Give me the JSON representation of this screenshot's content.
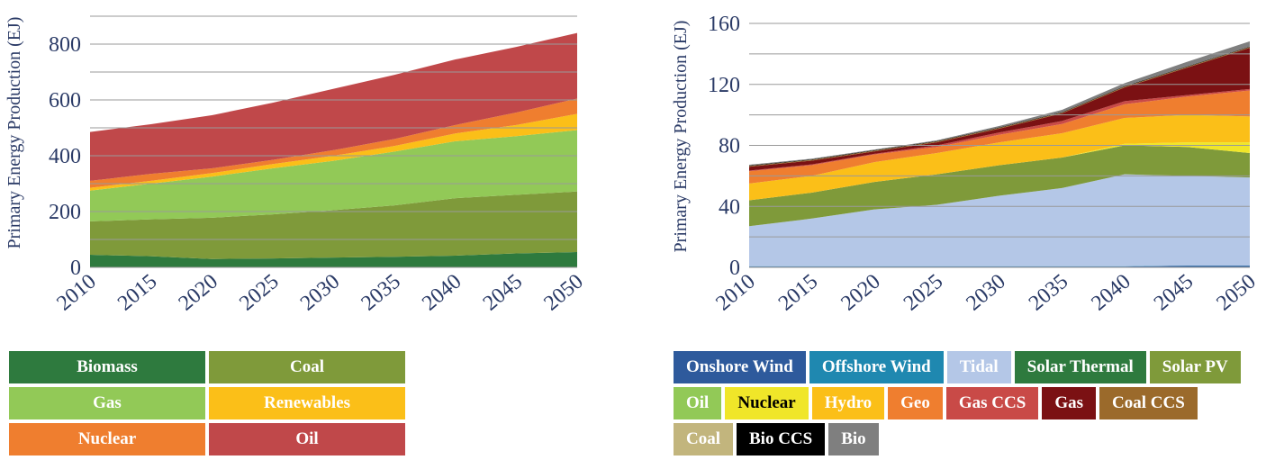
{
  "chart_data": [
    {
      "type": "stacked-area",
      "ylabel": "Primary Energy Production (EJ)",
      "x": [
        2010,
        2015,
        2020,
        2025,
        2030,
        2035,
        2040,
        2045,
        2050
      ],
      "xlim": [
        2010,
        2050
      ],
      "xticks": [
        2010,
        2015,
        2020,
        2025,
        2030,
        2035,
        2040,
        2045,
        2050
      ],
      "ylim": [
        0,
        900
      ],
      "yticks": [
        0,
        200,
        400,
        600,
        800
      ],
      "ygrid": [
        100,
        200,
        300,
        400,
        500,
        600,
        700,
        800,
        900
      ],
      "series": [
        {
          "name": "Biomass",
          "color": "#2e7a3e",
          "values": [
            45,
            40,
            30,
            32,
            35,
            38,
            42,
            50,
            55
          ]
        },
        {
          "name": "Coal",
          "color": "#7f9a3a",
          "values": [
            120,
            132,
            148,
            158,
            170,
            184,
            206,
            210,
            217
          ]
        },
        {
          "name": "Gas",
          "color": "#92c957",
          "values": [
            110,
            128,
            147,
            165,
            177,
            193,
            204,
            210,
            220
          ]
        },
        {
          "name": "Renewables",
          "color": "#fbbf18",
          "values": [
            10,
            10,
            13,
            15,
            18,
            20,
            28,
            40,
            58
          ]
        },
        {
          "name": "Nuclear",
          "color": "#ef7e2f",
          "values": [
            25,
            25,
            17,
            15,
            20,
            25,
            30,
            45,
            55
          ]
        },
        {
          "name": "Oil",
          "color": "#c0484a",
          "values": [
            175,
            178,
            190,
            205,
            220,
            230,
            235,
            235,
            235
          ]
        }
      ]
    },
    {
      "type": "stacked-area",
      "ylabel": "Primary Energy Production (EJ)",
      "x": [
        2010,
        2015,
        2020,
        2025,
        2030,
        2035,
        2040,
        2045,
        2050
      ],
      "xlim": [
        2010,
        2050
      ],
      "xticks": [
        2010,
        2015,
        2020,
        2025,
        2030,
        2035,
        2040,
        2045,
        2050
      ],
      "ylim": [
        0,
        160
      ],
      "yticks": [
        0,
        40,
        80,
        120,
        160
      ],
      "ygrid": [
        20,
        40,
        60,
        80,
        100,
        120,
        140,
        160
      ],
      "series": [
        {
          "name": "Onshore Wind",
          "color": "#2e5a9c",
          "values": [
            0.5,
            0.5,
            0.5,
            0.5,
            0.5,
            0.5,
            0.5,
            1,
            1
          ]
        },
        {
          "name": "Offshore Wind",
          "color": "#1f88b0",
          "values": [
            0.2,
            0.2,
            0.2,
            0.2,
            0.2,
            0.2,
            0.2,
            0.2,
            0.2
          ]
        },
        {
          "name": "Tidal",
          "color": "#b4c7e7",
          "values": [
            26.3,
            31.3,
            37.3,
            40.3,
            46.3,
            51.3,
            60.3,
            58.8,
            57.8
          ]
        },
        {
          "name": "Solar Thermal",
          "color": "#2e7a3e",
          "values": [
            0,
            0,
            0,
            0,
            0,
            0,
            0,
            0,
            0
          ]
        },
        {
          "name": "Solar PV",
          "color": "#7f9a3a",
          "values": [
            17,
            17,
            18,
            20,
            20,
            20,
            19,
            19,
            16
          ]
        },
        {
          "name": "Oil",
          "color": "#92c957",
          "values": [
            0,
            0,
            0,
            0,
            0,
            0,
            0,
            0,
            0
          ]
        },
        {
          "name": "Nuclear",
          "color": "#f0e629",
          "values": [
            0,
            0,
            0,
            0,
            0,
            0,
            1,
            3,
            7
          ]
        },
        {
          "name": "Hydro",
          "color": "#fbbf18",
          "values": [
            11,
            11,
            13,
            14,
            15,
            16,
            17,
            18,
            17
          ]
        },
        {
          "name": "Geo",
          "color": "#ef7e2f",
          "values": [
            8,
            7,
            5,
            4,
            5,
            6,
            9,
            12,
            17
          ]
        },
        {
          "name": "Gas CCS",
          "color": "#c94a47",
          "values": [
            0.5,
            0.5,
            0.5,
            1,
            1.5,
            2,
            2,
            1,
            1
          ]
        },
        {
          "name": "Gas",
          "color": "#7b1113",
          "values": [
            2.5,
            2.5,
            1.5,
            2,
            2.5,
            5,
            9,
            18,
            27
          ]
        },
        {
          "name": "Coal CCS",
          "color": "#9b6a2b",
          "values": [
            0.5,
            0.5,
            0.5,
            0.5,
            0.5,
            0.5,
            0.5,
            0.5,
            0.5
          ]
        },
        {
          "name": "Coal",
          "color": "#c2b57d",
          "values": [
            0,
            0,
            0,
            0,
            0,
            0,
            0,
            0,
            0
          ]
        },
        {
          "name": "Bio CCS",
          "color": "#000000",
          "values": [
            0.3,
            0.3,
            0.3,
            0.3,
            0.3,
            0.3,
            0.3,
            0.3,
            0.3
          ]
        },
        {
          "name": "Bio",
          "color": "#7f7f7f",
          "values": [
            0.5,
            0.5,
            0.5,
            0.5,
            1,
            1.5,
            2,
            3,
            3.5
          ]
        }
      ]
    }
  ]
}
